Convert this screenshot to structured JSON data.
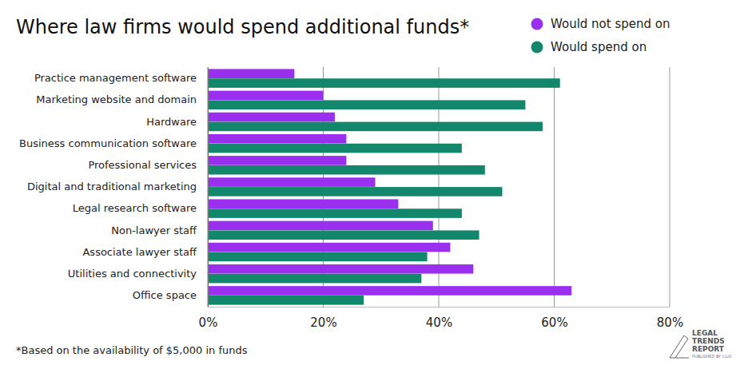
{
  "chart_data": {
    "type": "bar",
    "orientation": "horizontal",
    "title": "Where law firms would spend additional funds*",
    "footnote": "*Based on the availability of $5,000 in funds",
    "logo_text": [
      "LEGAL",
      "TRENDS",
      "REPORT"
    ],
    "logo_subtext": "PUBLISHED BY CLIO",
    "categories": [
      "Practice management software",
      "Marketing website and domain",
      "Hardware",
      "Business communication software",
      "Professional services",
      "Digital and traditional marketing",
      "Legal research software",
      "Non-lawyer staff",
      "Associate lawyer staff",
      "Utilities and connectivity",
      "Office space"
    ],
    "series": [
      {
        "name": "Would not spend on",
        "color": "#9b2ff0",
        "values": [
          15,
          20,
          22,
          24,
          24,
          29,
          33,
          39,
          42,
          46,
          63
        ]
      },
      {
        "name": "Would spend on",
        "color": "#12876b",
        "values": [
          61,
          55,
          58,
          44,
          48,
          51,
          44,
          47,
          38,
          37,
          27
        ]
      }
    ],
    "xlim": [
      0,
      80
    ],
    "xticks": [
      {
        "value": 0,
        "label": "0%"
      },
      {
        "value": 20,
        "label": "20%"
      },
      {
        "value": 40,
        "label": "40%"
      },
      {
        "value": 60,
        "label": "60%"
      },
      {
        "value": 80,
        "label": "80%"
      }
    ],
    "grid": true,
    "legend": "top-right"
  }
}
